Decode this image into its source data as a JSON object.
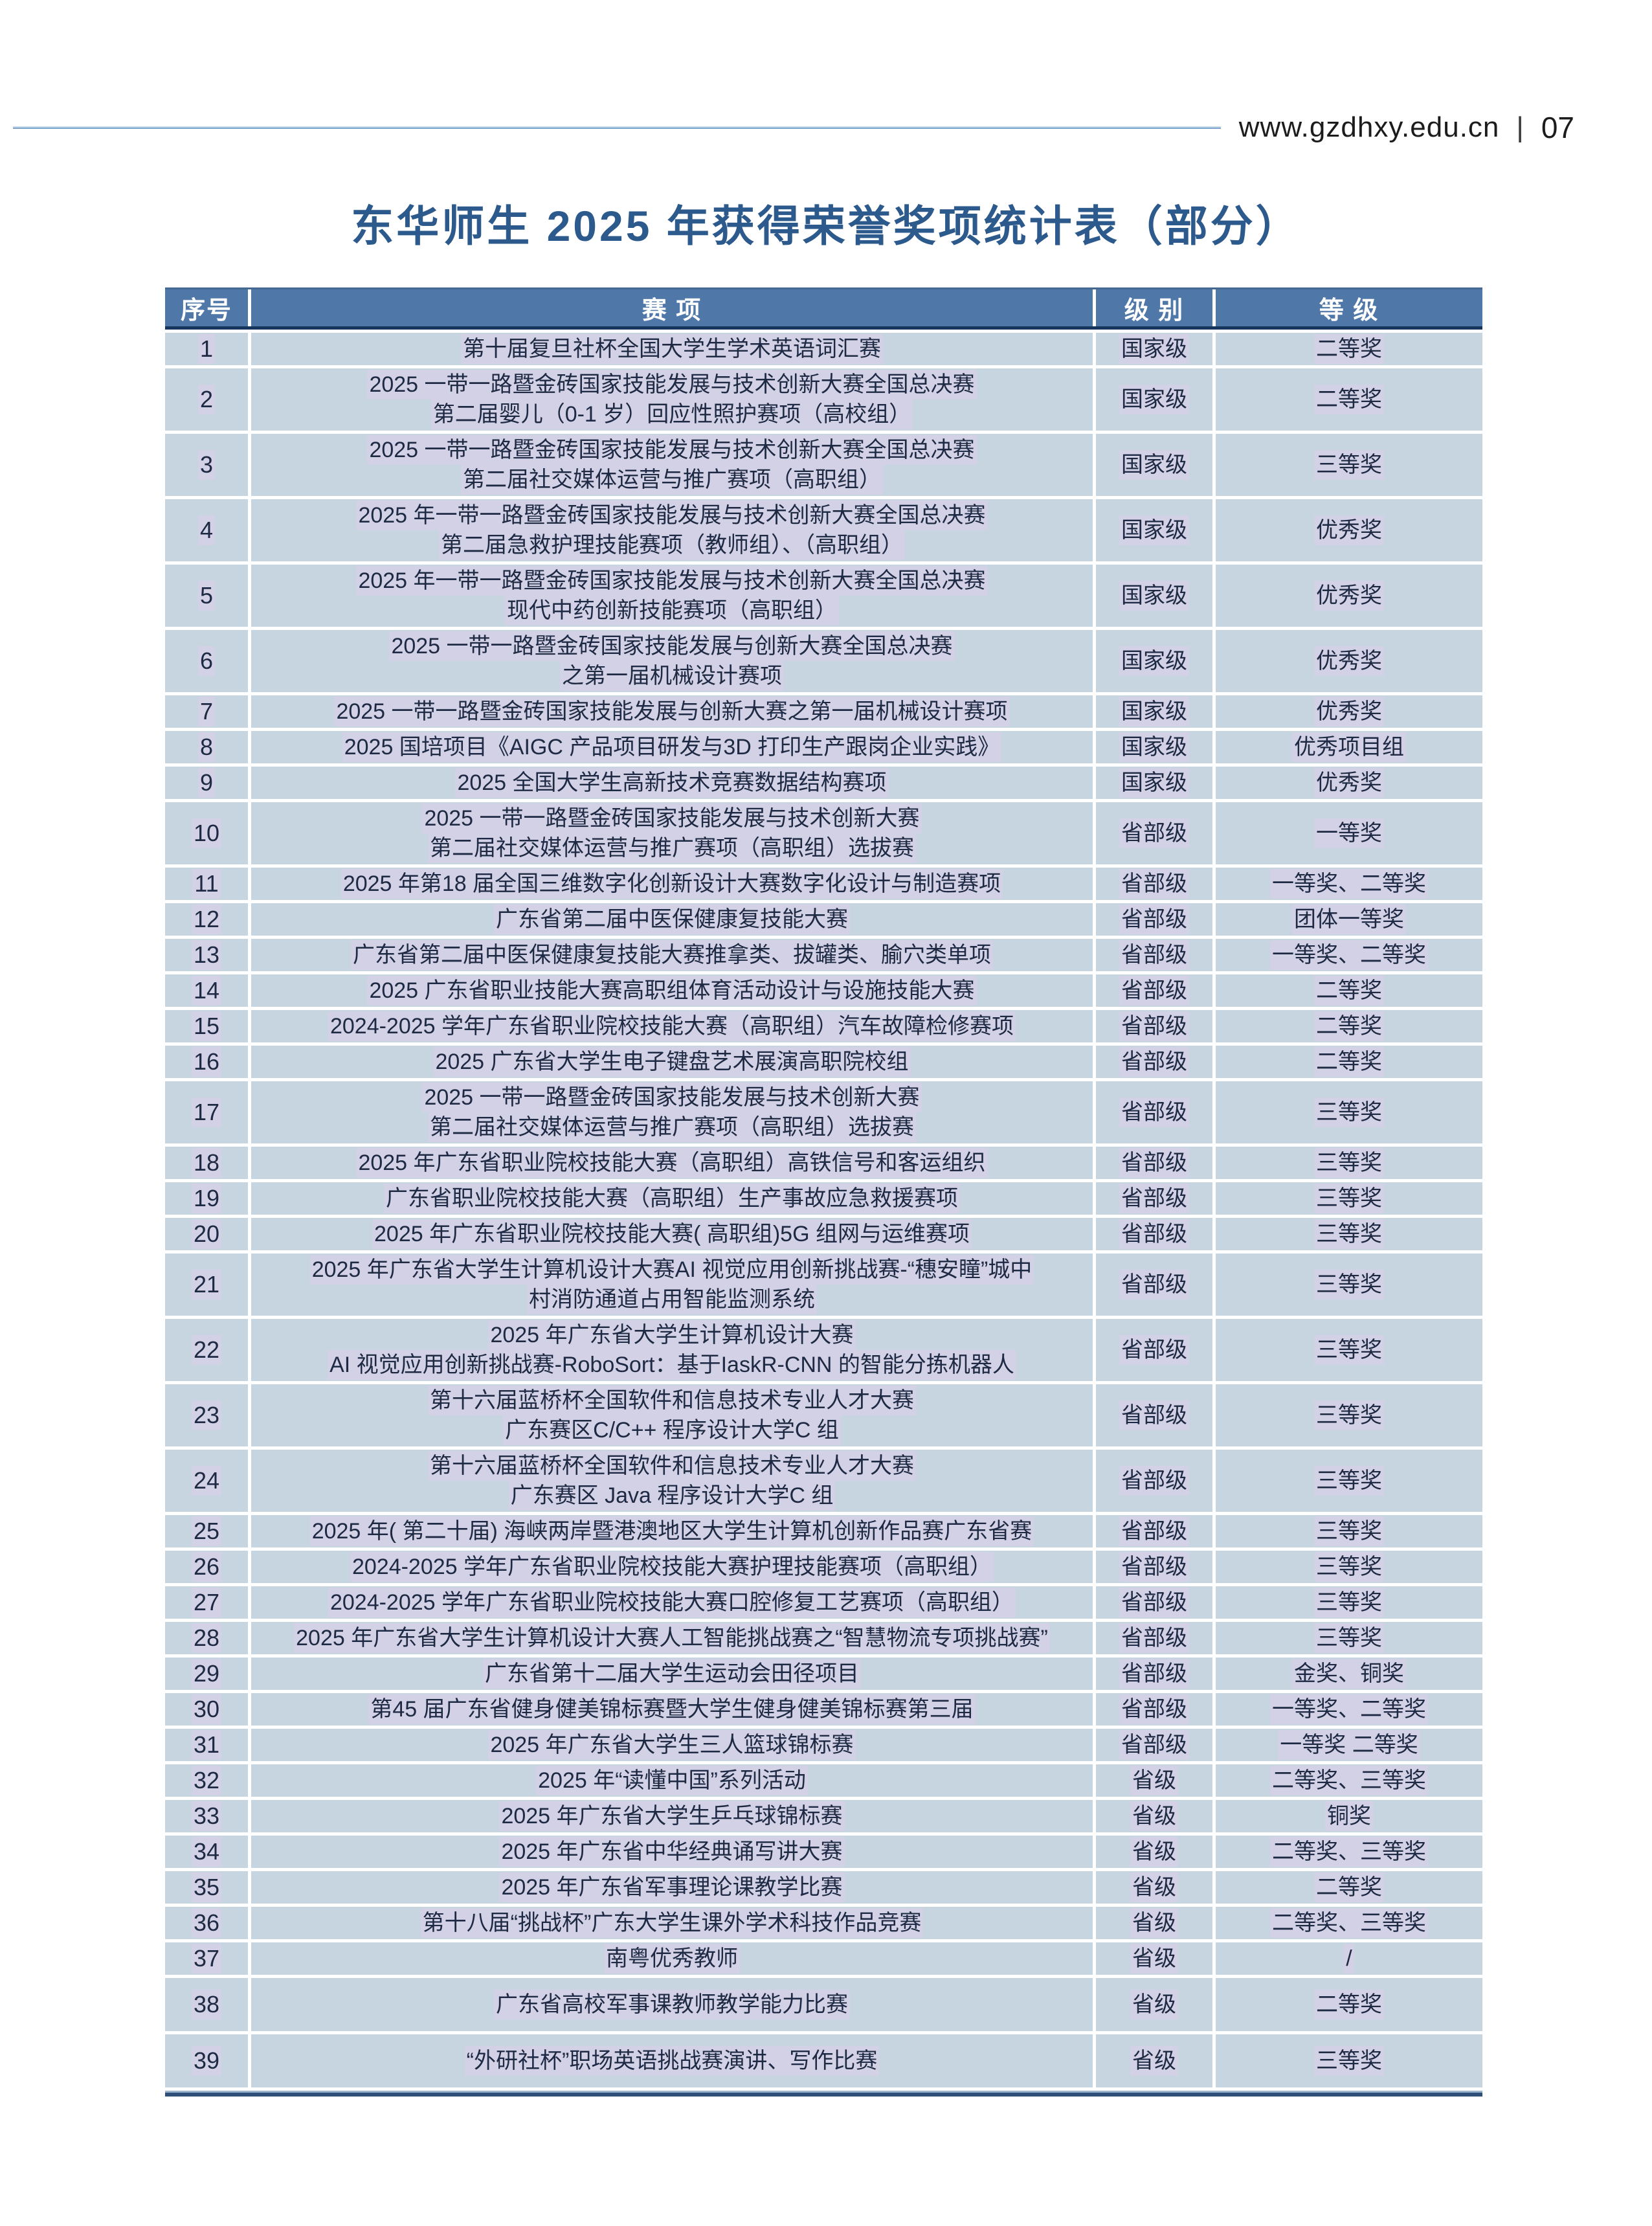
{
  "page": {
    "site_url": "www.gzdhxy.edu.cn",
    "separator": "|",
    "page_number": "07"
  },
  "title": "东华师生 2025 年获得荣誉奖项统计表（部分）",
  "colors": {
    "header_bg": "#4f78a8",
    "row_bg": "#c7d5e1",
    "title_color": "#2d5a8c",
    "navy_border": "#17365d",
    "highlight": "#d3d1e5"
  },
  "table": {
    "headers": [
      "序号",
      "赛 项",
      "级 别",
      "等 级"
    ],
    "rows": [
      {
        "no": "1",
        "event": [
          "第十届复旦社杯全国大学生学术英语词汇赛"
        ],
        "level": "国家级",
        "grade": "二等奖"
      },
      {
        "no": "2",
        "event": [
          "2025 一带一路暨金砖国家技能发展与技术创新大赛全国总决赛",
          "第二届婴儿（0-1 岁）回应性照护赛项（高校组）"
        ],
        "level": "国家级",
        "grade": "二等奖"
      },
      {
        "no": "3",
        "event": [
          "2025 一带一路暨金砖国家技能发展与技术创新大赛全国总决赛",
          "第二届社交媒体运营与推广赛项（高职组）"
        ],
        "level": "国家级",
        "grade": "三等奖"
      },
      {
        "no": "4",
        "event": [
          "2025 年一带一路暨金砖国家技能发展与技术创新大赛全国总决赛",
          "第二届急救护理技能赛项（教师组）、（高职组）"
        ],
        "level": "国家级",
        "grade": "优秀奖"
      },
      {
        "no": "5",
        "event": [
          "2025 年一带一路暨金砖国家技能发展与技术创新大赛全国总决赛",
          "现代中药创新技能赛项（高职组）"
        ],
        "level": "国家级",
        "grade": "优秀奖"
      },
      {
        "no": "6",
        "event": [
          "2025 一带一路暨金砖国家技能发展与创新大赛全国总决赛",
          "之第一届机械设计赛项"
        ],
        "level": "国家级",
        "grade": "优秀奖"
      },
      {
        "no": "7",
        "event": [
          "2025 一带一路暨金砖国家技能发展与创新大赛之第一届机械设计赛项"
        ],
        "level": "国家级",
        "grade": "优秀奖"
      },
      {
        "no": "8",
        "event": [
          "2025 国培项目《AIGC 产品项目研发与3D 打印生产跟岗企业实践》"
        ],
        "level": "国家级",
        "grade": "优秀项目组"
      },
      {
        "no": "9",
        "event": [
          "2025 全国大学生高新技术竞赛数据结构赛项"
        ],
        "level": "国家级",
        "grade": "优秀奖"
      },
      {
        "no": "10",
        "event": [
          "2025 一带一路暨金砖国家技能发展与技术创新大赛",
          "第二届社交媒体运营与推广赛项（高职组）选拔赛"
        ],
        "level": "省部级",
        "grade": "一等奖"
      },
      {
        "no": "11",
        "event": [
          "2025 年第18 届全国三维数字化创新设计大赛数字化设计与制造赛项"
        ],
        "level": "省部级",
        "grade": "一等奖、二等奖"
      },
      {
        "no": "12",
        "event": [
          "广东省第二届中医保健康复技能大赛"
        ],
        "level": "省部级",
        "grade": "团体一等奖"
      },
      {
        "no": "13",
        "event": [
          "广东省第二届中医保健康复技能大赛推拿类、拔罐类、腧穴类单项"
        ],
        "level": "省部级",
        "grade": "一等奖、二等奖"
      },
      {
        "no": "14",
        "event": [
          "2025 广东省职业技能大赛高职组体育活动设计与设施技能大赛"
        ],
        "level": "省部级",
        "grade": "二等奖"
      },
      {
        "no": "15",
        "event": [
          "2024-2025 学年广东省职业院校技能大赛（高职组）汽车故障检修赛项"
        ],
        "level": "省部级",
        "grade": "二等奖"
      },
      {
        "no": "16",
        "event": [
          "2025 广东省大学生电子键盘艺术展演高职院校组"
        ],
        "level": "省部级",
        "grade": "二等奖"
      },
      {
        "no": "17",
        "event": [
          "2025 一带一路暨金砖国家技能发展与技术创新大赛",
          "第二届社交媒体运营与推广赛项（高职组）选拔赛"
        ],
        "level": "省部级",
        "grade": "三等奖"
      },
      {
        "no": "18",
        "event": [
          "2025 年广东省职业院校技能大赛（高职组）高铁信号和客运组织"
        ],
        "level": "省部级",
        "grade": "三等奖"
      },
      {
        "no": "19",
        "event": [
          "广东省职业院校技能大赛（高职组）生产事故应急救援赛项"
        ],
        "level": "省部级",
        "grade": "三等奖"
      },
      {
        "no": "20",
        "event": [
          "2025 年广东省职业院校技能大赛( 高职组)5G 组网与运维赛项"
        ],
        "level": "省部级",
        "grade": "三等奖"
      },
      {
        "no": "21",
        "event": [
          "2025 年广东省大学生计算机设计大赛AI 视觉应用创新挑战赛-“穗安瞳”城中",
          "村消防通道占用智能监测系统"
        ],
        "level": "省部级",
        "grade": "三等奖"
      },
      {
        "no": "22",
        "event": [
          "2025 年广东省大学生计算机设计大赛",
          "AI 视觉应用创新挑战赛-RoboSort：基于IaskR-CNN 的智能分拣机器人"
        ],
        "level": "省部级",
        "grade": "三等奖"
      },
      {
        "no": "23",
        "event": [
          "第十六届蓝桥杯全国软件和信息技术专业人才大赛",
          "广东赛区C/C++ 程序设计大学C 组"
        ],
        "level": "省部级",
        "grade": "三等奖"
      },
      {
        "no": "24",
        "event": [
          "第十六届蓝桥杯全国软件和信息技术专业人才大赛",
          "广东赛区 Java 程序设计大学C 组"
        ],
        "level": "省部级",
        "grade": "三等奖"
      },
      {
        "no": "25",
        "event": [
          "2025 年( 第二十届) 海峡两岸暨港澳地区大学生计算机创新作品赛广东省赛"
        ],
        "level": "省部级",
        "grade": "三等奖"
      },
      {
        "no": "26",
        "event": [
          "2024-2025 学年广东省职业院校技能大赛护理技能赛项（高职组）"
        ],
        "level": "省部级",
        "grade": "三等奖"
      },
      {
        "no": "27",
        "event": [
          "2024-2025 学年广东省职业院校技能大赛口腔修复工艺赛项（高职组）"
        ],
        "level": "省部级",
        "grade": "三等奖"
      },
      {
        "no": "28",
        "event": [
          "2025 年广东省大学生计算机设计大赛人工智能挑战赛之“智慧物流专项挑战赛”"
        ],
        "level": "省部级",
        "grade": "三等奖"
      },
      {
        "no": "29",
        "event": [
          "广东省第十二届大学生运动会田径项目"
        ],
        "level": "省部级",
        "grade": "金奖、铜奖"
      },
      {
        "no": "30",
        "event": [
          "第45 届广东省健身健美锦标赛暨大学生健身健美锦标赛第三届"
        ],
        "level": "省部级",
        "grade": "一等奖、二等奖"
      },
      {
        "no": "31",
        "event": [
          "2025 年广东省大学生三人篮球锦标赛"
        ],
        "level": "省部级",
        "grade": "一等奖 二等奖"
      },
      {
        "no": "32",
        "event": [
          "2025 年“读懂中国”系列活动"
        ],
        "level": "省级",
        "grade": "二等奖、三等奖"
      },
      {
        "no": "33",
        "event": [
          "2025 年广东省大学生乒乓球锦标赛"
        ],
        "level": "省级",
        "grade": "铜奖"
      },
      {
        "no": "34",
        "event": [
          "2025 年广东省中华经典诵写讲大赛"
        ],
        "level": "省级",
        "grade": "二等奖、三等奖"
      },
      {
        "no": "35",
        "event": [
          "2025 年广东省军事理论课教学比赛"
        ],
        "level": "省级",
        "grade": "二等奖"
      },
      {
        "no": "36",
        "event": [
          "第十八届“挑战杯”广东大学生课外学术科技作品竞赛"
        ],
        "level": "省级",
        "grade": "二等奖、三等奖"
      },
      {
        "no": "37",
        "event": [
          "南粤优秀教师"
        ],
        "level": "省级",
        "grade": "/"
      },
      {
        "no": "38",
        "event": [
          "广东省高校军事课教师教学能力比赛"
        ],
        "level": "省级",
        "grade": "二等奖",
        "tall": true
      },
      {
        "no": "39",
        "event": [
          "“外研社杯”职场英语挑战赛演讲、写作比赛"
        ],
        "level": "省级",
        "grade": "三等奖",
        "tall": true
      }
    ]
  }
}
